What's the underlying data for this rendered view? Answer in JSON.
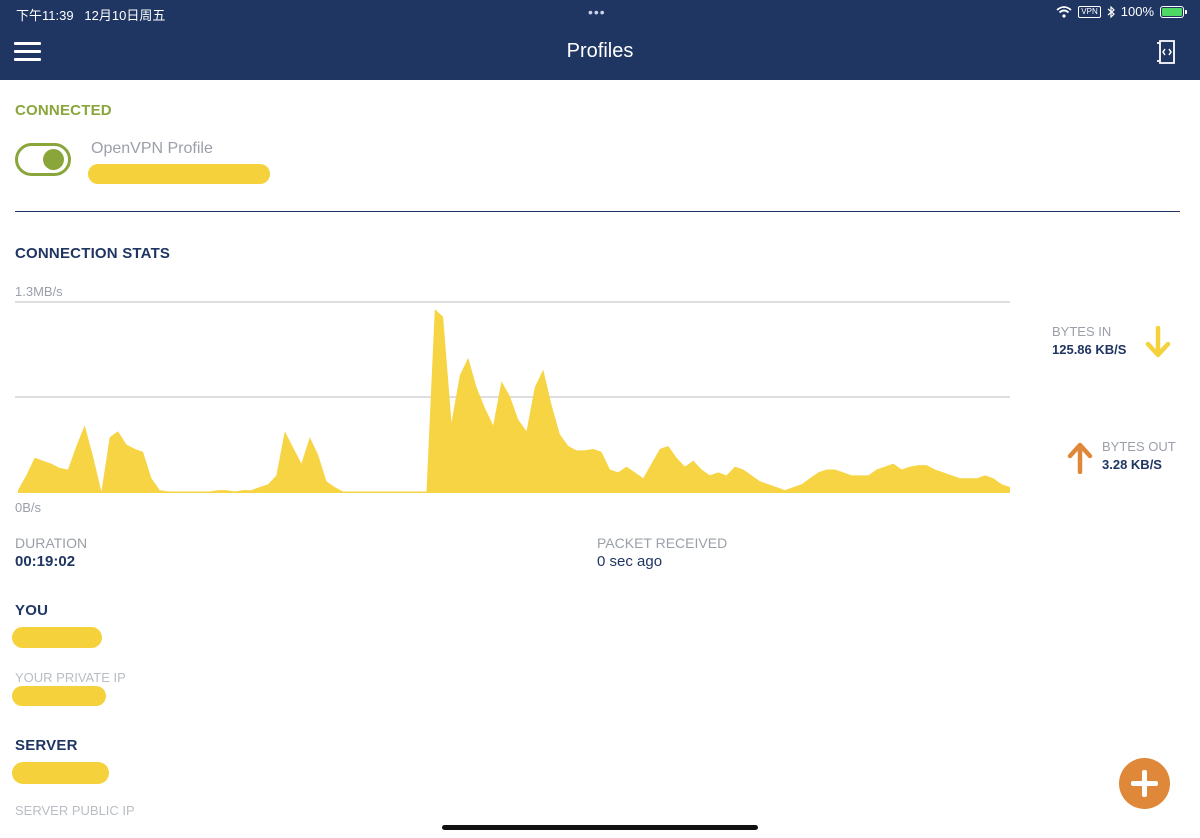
{
  "status_bar": {
    "time": "下午11:39",
    "date": "12月10日周五",
    "dots": "•••",
    "vpn": "VPN",
    "battery": "100%",
    "battery_level": 1.0
  },
  "header": {
    "title": "Profiles",
    "menu_icon": "hamburger-menu-icon",
    "log_icon": "log-icon",
    "background": "#1f3562"
  },
  "connection": {
    "status": "CONNECTED",
    "status_color": "#8aa53a",
    "toggle_on": true,
    "profile_label": "OpenVPN Profile"
  },
  "stats": {
    "section_title": "CONNECTION STATS",
    "bytes_in_label": "BYTES IN",
    "bytes_in_value": "125.86 KB/S",
    "bytes_out_label": "BYTES OUT",
    "bytes_out_value": "3.28 KB/S",
    "bytes_in_color": "#f5d13c",
    "bytes_out_color": "#e0883a"
  },
  "chart_data": {
    "type": "area",
    "y_max_label": "1.3MB/s",
    "y_min_label": "0B/s",
    "color": "#f6d444",
    "grid": true,
    "ylim": [
      0,
      1.3
    ],
    "x": [
      0,
      1,
      2,
      3,
      4,
      5,
      6,
      7,
      8,
      9,
      10,
      11,
      12,
      13,
      14,
      15,
      16,
      17,
      18,
      19,
      20,
      21,
      22,
      23,
      24,
      25,
      26,
      27,
      28,
      29,
      30,
      31,
      32,
      33,
      34,
      35,
      36,
      37,
      38,
      39,
      40,
      41,
      42,
      43,
      44,
      45,
      46,
      47,
      48,
      49,
      50,
      51,
      52,
      53,
      54,
      55,
      56,
      57,
      58,
      59,
      60,
      61,
      62,
      63,
      64,
      65,
      66,
      67,
      68,
      69,
      70,
      71,
      72,
      73,
      74,
      75,
      76,
      77,
      78,
      79,
      80,
      81,
      82,
      83,
      84,
      85,
      86,
      87,
      88,
      89,
      90,
      91,
      92,
      93,
      94,
      95,
      96,
      97,
      98,
      99,
      100,
      101,
      102,
      103,
      104,
      105,
      106,
      107,
      108,
      109,
      110,
      111,
      112,
      113,
      114,
      115,
      116,
      117,
      118,
      119
    ],
    "values": [
      0.02,
      0.12,
      0.24,
      0.22,
      0.2,
      0.17,
      0.16,
      0.32,
      0.46,
      0.25,
      0.01,
      0.38,
      0.42,
      0.33,
      0.3,
      0.28,
      0.1,
      0.02,
      0.01,
      0.01,
      0.01,
      0.01,
      0.01,
      0.01,
      0.02,
      0.02,
      0.01,
      0.02,
      0.02,
      0.04,
      0.06,
      0.12,
      0.42,
      0.31,
      0.2,
      0.38,
      0.26,
      0.08,
      0.04,
      0.01,
      0.01,
      0.01,
      0.01,
      0.01,
      0.01,
      0.01,
      0.01,
      0.01,
      0.01,
      0.01,
      1.25,
      1.2,
      0.48,
      0.8,
      0.92,
      0.72,
      0.58,
      0.46,
      0.76,
      0.66,
      0.5,
      0.42,
      0.72,
      0.84,
      0.6,
      0.4,
      0.32,
      0.29,
      0.29,
      0.3,
      0.28,
      0.16,
      0.14,
      0.18,
      0.14,
      0.1,
      0.2,
      0.3,
      0.32,
      0.24,
      0.18,
      0.22,
      0.16,
      0.12,
      0.14,
      0.12,
      0.18,
      0.16,
      0.12,
      0.08,
      0.06,
      0.04,
      0.02,
      0.04,
      0.06,
      0.1,
      0.14,
      0.16,
      0.16,
      0.14,
      0.12,
      0.12,
      0.12,
      0.16,
      0.18,
      0.2,
      0.16,
      0.18,
      0.19,
      0.19,
      0.16,
      0.14,
      0.12,
      0.1,
      0.1,
      0.1,
      0.12,
      0.1,
      0.06,
      0.04
    ]
  },
  "details": {
    "duration_label": "DURATION",
    "duration_value": "00:19:02",
    "packet_label": "PACKET RECEIVED",
    "packet_value": "0 sec ago",
    "you_label": "YOU",
    "private_ip_label": "YOUR PRIVATE IP",
    "server_label": "SERVER",
    "server_ip_label": "SERVER PUBLIC IP"
  },
  "fab": {
    "icon": "plus-icon",
    "color": "#e0883a"
  }
}
